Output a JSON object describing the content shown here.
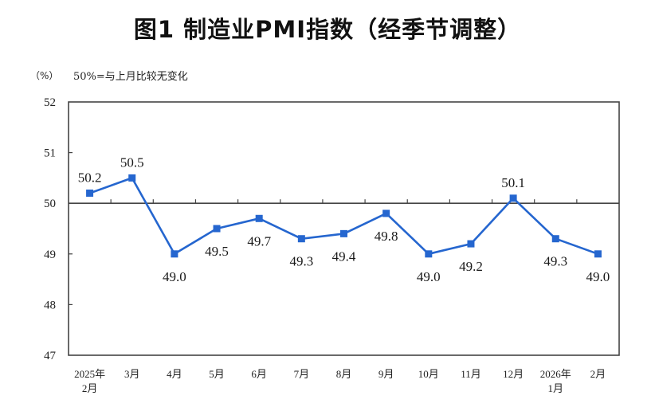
{
  "title": "图1  制造业PMI指数（经季节调整）",
  "unit_label": "（%）",
  "note": "50%=与上月比较无变化",
  "colors": {
    "line": "#2566cf",
    "axis": "#444444",
    "reference_line": "#444444"
  },
  "chart_data": {
    "type": "line",
    "title": "图1  制造业PMI指数（经季节调整）",
    "xlabel": "",
    "ylabel": "（%）",
    "ylim": [
      47,
      52
    ],
    "yticks": [
      47,
      48,
      49,
      50,
      51,
      52
    ],
    "grid": false,
    "reference_line": 50,
    "reference_note": "50%=与上月比较无变化",
    "legend": null,
    "categories": [
      [
        "2025年",
        "2月"
      ],
      [
        "3月"
      ],
      [
        "4月"
      ],
      [
        "5月"
      ],
      [
        "6月"
      ],
      [
        "7月"
      ],
      [
        "8月"
      ],
      [
        "9月"
      ],
      [
        "10月"
      ],
      [
        "11月"
      ],
      [
        "12月"
      ],
      [
        "2026年",
        "1月"
      ],
      [
        "2月"
      ]
    ],
    "series": [
      {
        "name": "制造业PMI",
        "marker": "square",
        "values": [
          50.2,
          50.5,
          49.0,
          49.5,
          49.7,
          49.3,
          49.4,
          49.8,
          49.0,
          49.2,
          50.1,
          49.3,
          49.0
        ],
        "value_labels": [
          "50.2",
          "50.5",
          "49.0",
          "49.5",
          "49.7",
          "49.3",
          "49.4",
          "49.8",
          "49.0",
          "49.2",
          "50.1",
          "49.3",
          "49.0"
        ],
        "label_positions": [
          "above",
          "above",
          "below",
          "below",
          "below",
          "below",
          "below",
          "below",
          "below",
          "below",
          "above",
          "below",
          "below"
        ]
      }
    ]
  }
}
